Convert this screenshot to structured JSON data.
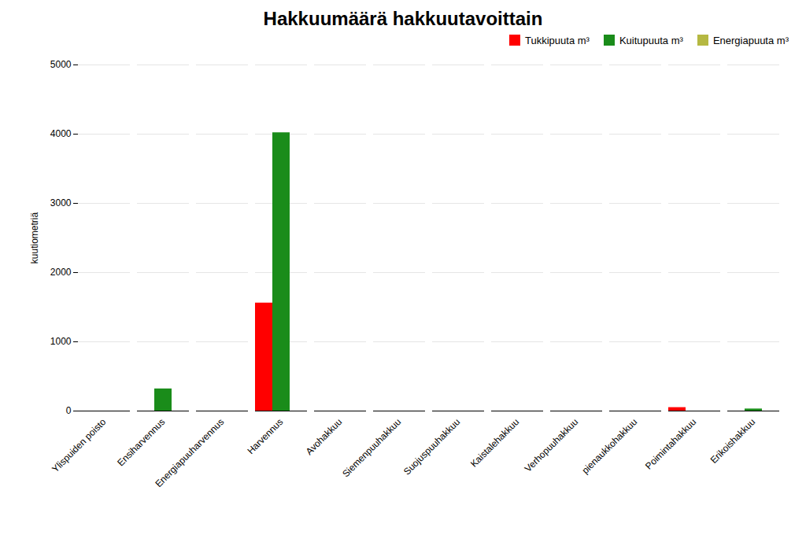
{
  "chart_data": {
    "type": "bar",
    "title": "Hakkuumäärä hakkuutavoittain",
    "ylabel": "kuutiometriä",
    "categories": [
      "Ylispuiden poisto",
      "Ensiharvennus",
      "Energiapuuharvennus",
      "Harvennus",
      "Avohakkuu",
      "Siemenpuuhakkuu",
      "Suojuspuuhakkuu",
      "Kaistalehakkuu",
      "Verhopuuhakkuu",
      "pienaukkohakkuu",
      "Poimintahakkuu",
      "Erikoishakkuu"
    ],
    "series": [
      {
        "name": "Tukkipuuta m³",
        "color": "#ff0000",
        "values": [
          0,
          0,
          0,
          1560,
          0,
          0,
          0,
          0,
          0,
          0,
          50,
          0
        ]
      },
      {
        "name": "Kuitupuuta m³",
        "color": "#1a8c1a",
        "values": [
          0,
          320,
          0,
          4020,
          0,
          0,
          0,
          0,
          0,
          0,
          0,
          30
        ]
      },
      {
        "name": "Energiapuuta m³",
        "color": "#b5b842",
        "values": [
          0,
          0,
          0,
          0,
          0,
          0,
          0,
          0,
          0,
          0,
          0,
          0
        ]
      }
    ],
    "ylim": [
      0,
      5000
    ],
    "yticks": [
      0,
      1000,
      2000,
      3000,
      4000,
      5000
    ],
    "grid": true,
    "legend": "upper right"
  }
}
